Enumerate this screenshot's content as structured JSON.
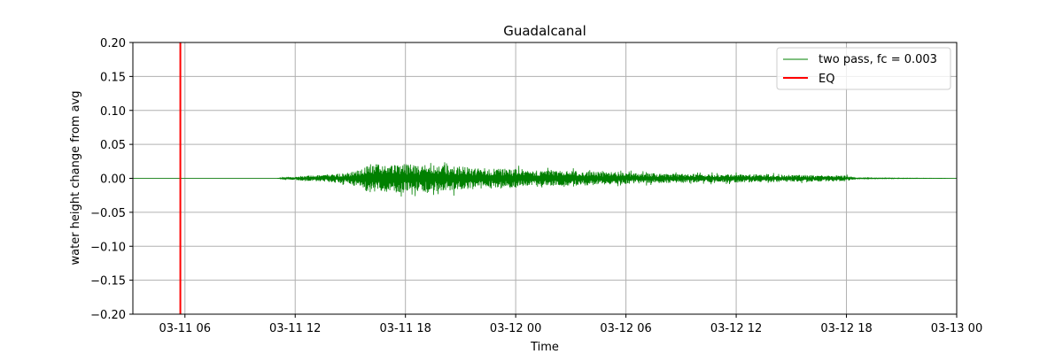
{
  "chart_data": {
    "type": "line",
    "title": "Guadalcanal",
    "xlabel": "Time",
    "ylabel": "water height change from avg",
    "xlim": [
      "2016-03-11T03:10",
      "2016-03-13T00:00"
    ],
    "ylim": [
      -0.2,
      0.2
    ],
    "grid": true,
    "legend_position": "top-right",
    "x_ticks": [
      "03-11 06",
      "03-11 12",
      "03-11 18",
      "03-12 00",
      "03-12 06",
      "03-12 12",
      "03-12 18",
      "03-13 00"
    ],
    "y_ticks": [
      "0.20",
      "0.15",
      "0.10",
      "0.05",
      "0.00",
      "−0.05",
      "−0.10",
      "−0.15",
      "−0.20"
    ],
    "series": [
      {
        "name": "two pass, fc = 0.003",
        "color": "#008000",
        "envelope": {
          "time": [
            "2016-03-11T03:10",
            "2016-03-11T11:00",
            "2016-03-11T12:20",
            "2016-03-11T13:30",
            "2016-03-11T15:00",
            "2016-03-11T16:00",
            "2016-03-11T18:00",
            "2016-03-11T20:00",
            "2016-03-11T22:00",
            "2016-03-12T00:00",
            "2016-03-12T02:00",
            "2016-03-12T04:00",
            "2016-03-12T06:00",
            "2016-03-12T08:00",
            "2016-03-12T10:00",
            "2016-03-12T12:00",
            "2016-03-12T14:00",
            "2016-03-12T16:00",
            "2016-03-12T18:00",
            "2016-03-12T18:30",
            "2016-03-13T00:00"
          ],
          "amplitude": [
            0.0,
            0.0,
            0.005,
            0.007,
            0.012,
            0.03,
            0.03,
            0.028,
            0.022,
            0.02,
            0.016,
            0.015,
            0.012,
            0.01,
            0.009,
            0.009,
            0.008,
            0.007,
            0.006,
            0.001,
            0.0
          ]
        }
      },
      {
        "name": "EQ",
        "color": "#ff0000",
        "x": "2016-03-11T05:45"
      }
    ]
  }
}
